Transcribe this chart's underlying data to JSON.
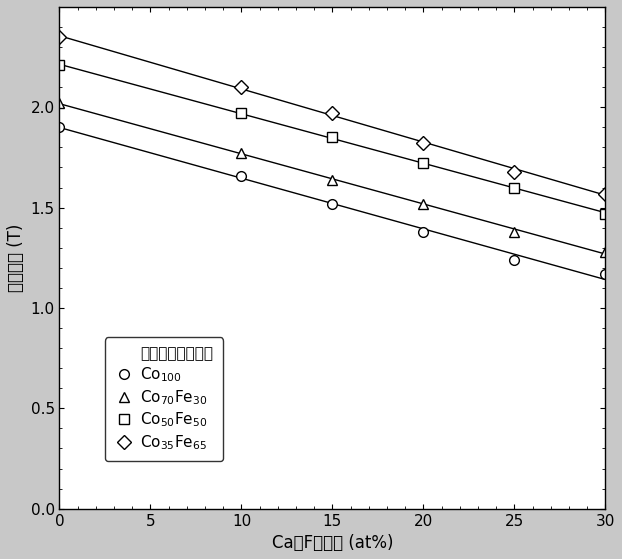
{
  "title": "",
  "xlabel": "CaとFの総量 (at%)",
  "ylabel": "飽和磁化 (T)",
  "xlim": [
    0,
    30
  ],
  "ylim": [
    0.0,
    2.5
  ],
  "xticks": [
    0,
    5,
    10,
    15,
    20,
    25,
    30
  ],
  "yticks": [
    0.0,
    0.5,
    1.0,
    1.5,
    2.0
  ],
  "series": [
    {
      "label": "Co$_{100}$",
      "marker": "o",
      "x": [
        0,
        10,
        15,
        20,
        25,
        30
      ],
      "y": [
        1.9,
        1.66,
        1.52,
        1.38,
        1.24,
        1.17
      ]
    },
    {
      "label": "Co$_{70}$Fe$_{30}$",
      "marker": "^",
      "x": [
        0,
        10,
        15,
        20,
        25,
        30
      ],
      "y": [
        2.02,
        1.77,
        1.64,
        1.52,
        1.38,
        1.28
      ]
    },
    {
      "label": "Co$_{50}$Fe$_{50}$",
      "marker": "s",
      "x": [
        0,
        10,
        15,
        20,
        25,
        30
      ],
      "y": [
        2.21,
        1.97,
        1.85,
        1.72,
        1.6,
        1.47
      ]
    },
    {
      "label": "Co$_{35}$Fe$_{65}$",
      "marker": "D",
      "x": [
        0,
        10,
        15,
        20,
        25,
        30
      ],
      "y": [
        2.35,
        2.1,
        1.97,
        1.82,
        1.68,
        1.57
      ]
    }
  ],
  "legend_title": "グラニュール組成",
  "color": "black",
  "linecolor": "black",
  "markersize": 7,
  "linewidth": 1.0,
  "background_color": "#ffffff",
  "figure_background": "#c8c8c8"
}
